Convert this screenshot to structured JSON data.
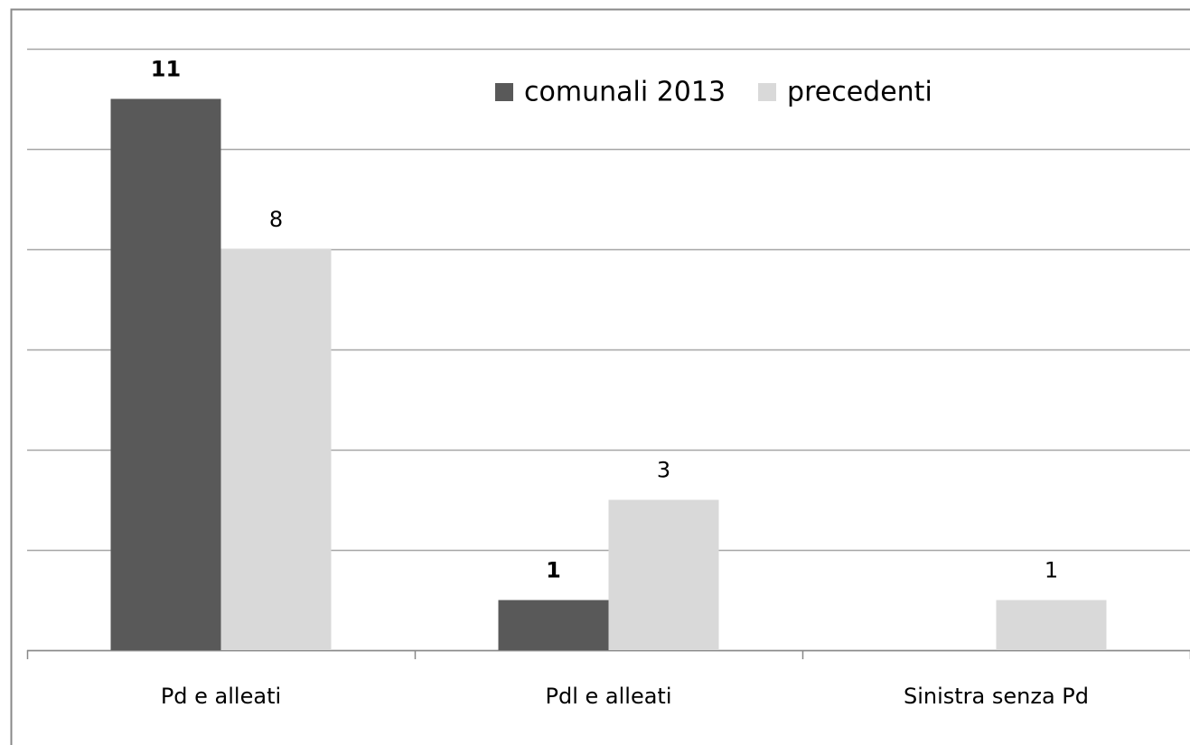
{
  "chart_data": {
    "type": "bar",
    "categories": [
      "Pd e alleati",
      "Pdl e alleati",
      "Sinistra senza Pd"
    ],
    "series": [
      {
        "name": "comunali 2013",
        "color": "#595959",
        "values": [
          11,
          1,
          null
        ]
      },
      {
        "name": "precedenti",
        "color": "#d9d9d9",
        "values": [
          8,
          3,
          1
        ]
      }
    ],
    "ylim": [
      0,
      12
    ],
    "yticks": [
      0,
      2,
      4,
      6,
      8,
      10,
      12
    ],
    "grid": true,
    "legend": "top"
  }
}
